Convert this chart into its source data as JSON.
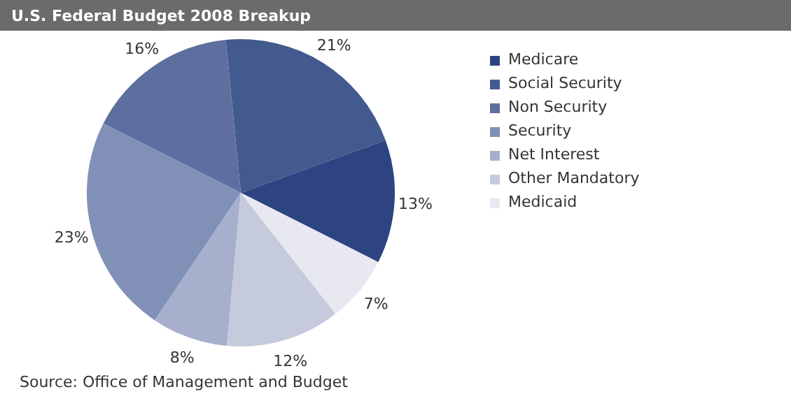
{
  "chart_data": {
    "type": "pie",
    "title": "U.S. Federal Budget 2008 Breakup",
    "categories": [
      "Medicare",
      "Social Security",
      "Non Security",
      "Security",
      "Net Interest",
      "Other Mandatory",
      "Medicaid"
    ],
    "values": [
      13,
      21,
      16,
      23,
      8,
      12,
      7
    ],
    "value_labels": [
      "13%",
      "21%",
      "16%",
      "23%",
      "8%",
      "12%",
      "7%"
    ],
    "colors": [
      "#2e4482",
      "#435a8f",
      "#5e6f9f",
      "#8090b6",
      "#a6b0cc",
      "#c5cadd",
      "#e8e9f0"
    ],
    "legend": "right",
    "annotations": [
      "Source: Office of Management and Budget"
    ]
  }
}
